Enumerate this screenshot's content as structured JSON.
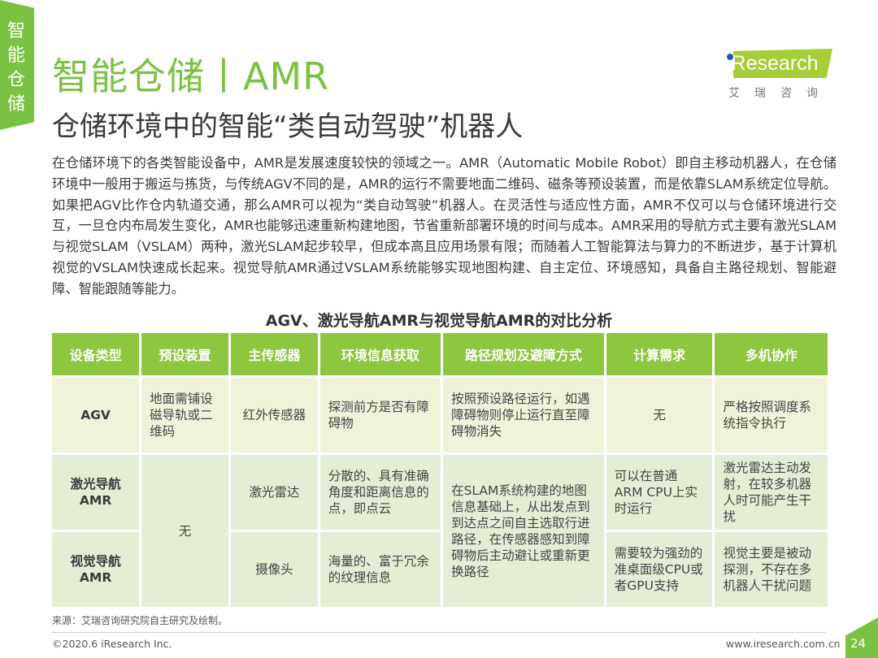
{
  "side_tab": {
    "label": "智能仓储"
  },
  "header": {
    "title": "智能仓储丨AMR",
    "subtitle": "仓储环境中的智能“类自动驾驶”机器人"
  },
  "logo": {
    "text": "iResearch",
    "cn": "艾瑞咨询",
    "brand_color": "#a6ce39"
  },
  "body_text": "在仓储环境下的各类智能设备中，AMR是发展速度较快的领域之一。AMR（Automatic Mobile Robot）即自主移动机器人，在仓储环境中一般用于搬运与拣货，与传统AGV不同的是，AMR的运行不需要地面二维码、磁条等预设装置，而是依靠SLAM系统定位导航。如果把AGV比作仓内轨道交通，那么AMR可以视为“类自动驾驶”机器人。在灵活性与适应性方面，AMR不仅可以与仓储环境进行交互，一旦仓内布局发生变化，AMR也能够迅速重新构建地图，节省重新部署环境的时间与成本。AMR采用的导航方式主要有激光SLAM与视觉SLAM（VSLAM）两种，激光SLAM起步较早，但成本高且应用场景有限；而随着人工智能算法与算力的不断进步，基于计算机视觉的VSLAM快速成长起来。视觉导航AMR通过VSLAM系统能够实现地图构建、自主定位、环境感知，具备自主路径规划、智能避障、智能跟随等能力。",
  "table": {
    "title": "AGV、激光导航AMR与视觉导航AMR的对比分析",
    "headers": [
      "设备类型",
      "预设装置",
      "主传感器",
      "环境信息获取",
      "路径规划及避障方式",
      "计算需求",
      "多机协作"
    ],
    "rows": [
      {
        "type": "AGV",
        "preset": "地面需铺设磁导轨或二维码",
        "sensor": "红外传感器",
        "env": "探测前方是否有障碍物",
        "path": "按照预设路径运行，如遇障碍物则停止运行直至障碍物消失",
        "compute": "无",
        "multi": "严格按照调度系统指令执行"
      },
      {
        "type": "激光导航AMR",
        "sensor": "激光雷达",
        "env": "分散的、具有准确角度和距离信息的点，即点云",
        "compute": "可以在普通ARM CPU上实时运行",
        "multi": "激光雷达主动发射，在较多机器人时可能产生干扰"
      },
      {
        "type": "视觉导航AMR",
        "sensor": "摄像头",
        "env": "海量的、富于冗余的纹理信息",
        "compute": "需要较为强劲的准桌面级CPU或者GPU支持",
        "multi": "视觉主要是被动探测，不存在多机器人干扰问题"
      }
    ],
    "amr_shared_preset": "无",
    "amr_shared_path": "在SLAM系统构建的地图信息基础上，从出发点到到达点之间自主选取行进路径，在传感器感知到障碍物后主动避让或重新更换路径"
  },
  "footer": {
    "source": "来源：艾瑞咨询研究院自主研究及绘制。",
    "copyright": "©2020.6 iResearch Inc.",
    "url": "www.iresearch.com.cn",
    "page": "24"
  },
  "colors": {
    "accent": "#7cc242",
    "header_fill": "#8dc63f",
    "agv_row": "#eef3d9",
    "amr_row": "#e3eed5"
  }
}
